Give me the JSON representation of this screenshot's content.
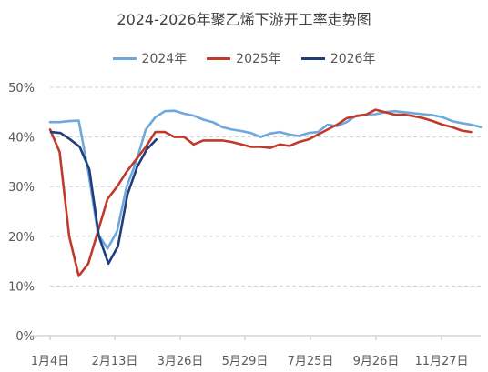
{
  "chart_data": {
    "type": "line",
    "title": "2024-2026年聚乙烯下游开工率走势图",
    "xlabel": "",
    "ylabel": "",
    "y_ticks": [
      "0%",
      "10%",
      "20%",
      "30%",
      "40%",
      "50%"
    ],
    "ylim": [
      0,
      50
    ],
    "x_ticks": [
      "1月4日",
      "2月13日",
      "3月26日",
      "5月29日",
      "7月25日",
      "9月26日",
      "11月27日"
    ],
    "grid": "horizontal dashed",
    "legend_position": "top",
    "series": [
      {
        "name": "2024年",
        "color": "#6FA8DC",
        "values": [
          43,
          43,
          43.2,
          43.3,
          33,
          20.5,
          17.5,
          21,
          30,
          35,
          41.5,
          44,
          45.2,
          45.3,
          44.7,
          44.3,
          43.5,
          43,
          42,
          41.5,
          41.2,
          40.8,
          40,
          40.7,
          41,
          40.5,
          40.2,
          40.8,
          41,
          42.5,
          42.2,
          43,
          44.3,
          44.5,
          44.6,
          45,
          45.2,
          45,
          44.8,
          44.6,
          44.4,
          44,
          43.2,
          42.8,
          42.5,
          42
        ]
      },
      {
        "name": "2025年",
        "color": "#C0392B",
        "values": [
          41.5,
          37,
          20,
          12,
          14.5,
          21,
          27.5,
          30,
          33,
          35.5,
          38,
          41,
          41,
          40,
          40,
          38.5,
          39.3,
          39.3,
          39.3,
          39,
          38.5,
          38,
          38,
          37.8,
          38.5,
          38.2,
          39,
          39.5,
          40.5,
          41.5,
          42.5,
          43.8,
          44.2,
          44.5,
          45.5,
          45,
          44.5,
          44.5,
          44.2,
          43.8,
          43.2,
          42.5,
          42,
          41.3,
          41
        ]
      },
      {
        "name": "2026年",
        "color": "#1F3E7A",
        "values": [
          41,
          40.8,
          39.5,
          38,
          33.5,
          20,
          14.5,
          18,
          28.5,
          34,
          37.5,
          39.5
        ]
      }
    ]
  }
}
